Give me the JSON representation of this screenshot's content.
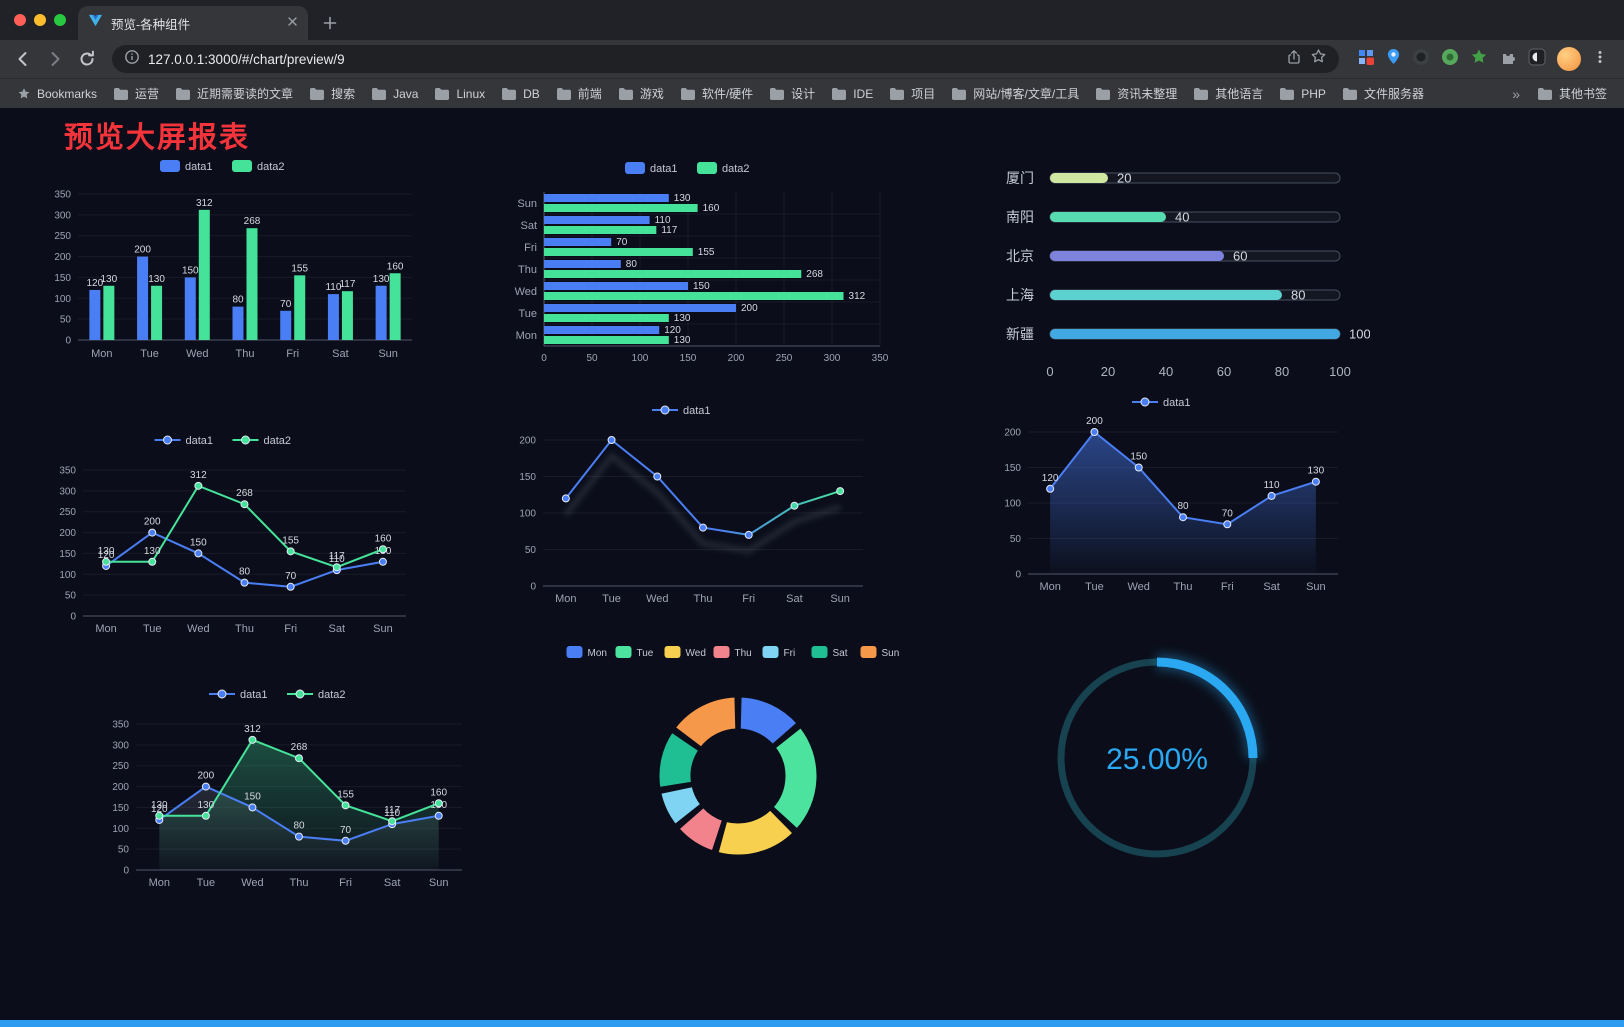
{
  "browser": {
    "tab_title": "预览-各种组件",
    "url": "127.0.0.1:3000/#/chart/preview/9",
    "bookmarks_label": "Bookmarks",
    "bookmarks": [
      "运营",
      "近期需要读的文章",
      "搜索",
      "Java",
      "Linux",
      "DB",
      "前端",
      "游戏",
      "软件/硬件",
      "设计",
      "IDE",
      "项目",
      "网站/博客/文章/工具",
      "资讯未整理",
      "其他语言",
      "PHP",
      "文件服务器"
    ],
    "overflow_chevron": "»",
    "other_bookmarks": "其他书签"
  },
  "page": {
    "title": "预览大屏报表",
    "title_color": "#f5333a",
    "background": "#0b0e1a",
    "bottom_bar_color": "#2d9bf0"
  },
  "chart_data": [
    {
      "type": "bar",
      "categories": [
        "Mon",
        "Tue",
        "Wed",
        "Thu",
        "Fri",
        "Sat",
        "Sun"
      ],
      "series": [
        {
          "name": "data1",
          "color": "#4a7ef5",
          "values": [
            120,
            200,
            150,
            80,
            70,
            110,
            130
          ]
        },
        {
          "name": "data2",
          "color": "#45e39a",
          "values": [
            130,
            130,
            312,
            268,
            155,
            117,
            160
          ]
        }
      ],
      "ylim": [
        0,
        350
      ],
      "ytick": 50,
      "value_labels": true,
      "legend_position": "top"
    },
    {
      "type": "hbar",
      "categories": [
        "Mon",
        "Tue",
        "Wed",
        "Thu",
        "Fri",
        "Sat",
        "Sun"
      ],
      "display_order_top_to_bottom": [
        "Sun",
        "Sat",
        "Fri",
        "Thu",
        "Wed",
        "Tue",
        "Mon"
      ],
      "series": [
        {
          "name": "data1",
          "color": "#4a7ef5",
          "values": [
            120,
            200,
            150,
            80,
            70,
            110,
            130
          ]
        },
        {
          "name": "data2",
          "color": "#45e39a",
          "values": [
            130,
            130,
            312,
            268,
            155,
            117,
            160
          ]
        }
      ],
      "xlim": [
        0,
        350
      ],
      "xtick": 50,
      "value_labels": true,
      "legend_position": "top"
    },
    {
      "type": "progress",
      "max": 100,
      "axis_ticks": [
        0,
        20,
        40,
        60,
        80,
        100
      ],
      "rows": [
        {
          "label": "厦门",
          "value": 20,
          "color": "#cfe7a0"
        },
        {
          "label": "南阳",
          "value": 40,
          "color": "#57dcb2"
        },
        {
          "label": "北京",
          "value": 60,
          "color": "#7d83dc"
        },
        {
          "label": "上海",
          "value": 80,
          "color": "#5bd2cf"
        },
        {
          "label": "新疆",
          "value": 100,
          "color": "#41a8e1"
        }
      ]
    },
    {
      "type": "line",
      "categories": [
        "Mon",
        "Tue",
        "Wed",
        "Thu",
        "Fri",
        "Sat",
        "Sun"
      ],
      "series": [
        {
          "name": "data1",
          "color": "#4a7ef5",
          "values": [
            120,
            200,
            150,
            80,
            70,
            110,
            130
          ]
        },
        {
          "name": "data2",
          "color": "#45e39a",
          "values": [
            130,
            130,
            312,
            268,
            155,
            117,
            160
          ]
        }
      ],
      "ylim": [
        0,
        350
      ],
      "ytick": 50,
      "value_labels": true,
      "legend_position": "top"
    },
    {
      "type": "line",
      "categories": [
        "Mon",
        "Tue",
        "Wed",
        "Thu",
        "Fri",
        "Sat",
        "Sun"
      ],
      "series": [
        {
          "name": "data1",
          "color": "#4a7ef5",
          "gradient": [
            "#4a7ef5",
            "#45e39a"
          ],
          "marker_colors": [
            "#4a7ef5",
            "#4a7ef5",
            "#4a7ef5",
            "#4a7ef5",
            "#4a7ef5",
            "#44d8a8",
            "#45e39a"
          ],
          "values": [
            120,
            200,
            150,
            80,
            70,
            110,
            130
          ]
        }
      ],
      "ylim": [
        0,
        200
      ],
      "ytick": 50,
      "value_labels": false,
      "shadow": true,
      "legend_position": "top"
    },
    {
      "type": "line",
      "categories": [
        "Mon",
        "Tue",
        "Wed",
        "Thu",
        "Fri",
        "Sat",
        "Sun"
      ],
      "series": [
        {
          "name": "data1",
          "color": "#4a7ef5",
          "area": "#4a7ef5",
          "area_opacity": 0.5,
          "values": [
            120,
            200,
            150,
            80,
            70,
            110,
            130
          ]
        }
      ],
      "ylim": [
        0,
        200
      ],
      "ytick": 50,
      "value_labels": true,
      "legend_position": "top"
    },
    {
      "type": "line",
      "categories": [
        "Mon",
        "Tue",
        "Wed",
        "Thu",
        "Fri",
        "Sat",
        "Sun"
      ],
      "series": [
        {
          "name": "data1",
          "color": "#4a7ef5",
          "area": "#aeb6c8",
          "area_opacity": 0.16,
          "values": [
            120,
            200,
            150,
            80,
            70,
            110,
            130
          ]
        },
        {
          "name": "data2",
          "color": "#45e39a",
          "area": "#45e39a",
          "area_opacity": 0.3,
          "values": [
            130,
            130,
            312,
            268,
            155,
            117,
            160
          ]
        }
      ],
      "ylim": [
        0,
        350
      ],
      "ytick": 50,
      "value_labels": true,
      "legend_position": "top"
    },
    {
      "type": "donut",
      "legend_position": "top",
      "slices": [
        {
          "name": "Mon",
          "value": 120,
          "color": "#4a7ef5"
        },
        {
          "name": "Tue",
          "value": 200,
          "color": "#4ce39f"
        },
        {
          "name": "Wed",
          "value": 150,
          "color": "#f7d04f"
        },
        {
          "name": "Thu",
          "value": 80,
          "color": "#f2838d"
        },
        {
          "name": "Fri",
          "value": 70,
          "color": "#7fd4f3"
        },
        {
          "name": "Sat",
          "value": 110,
          "color": "#1fbf93"
        },
        {
          "name": "Sun",
          "value": 130,
          "color": "#f6984a"
        }
      ]
    },
    {
      "type": "gauge",
      "value": 25,
      "display": "25.00%",
      "color": "#2aa9f2",
      "track_color": "#17424f"
    }
  ]
}
